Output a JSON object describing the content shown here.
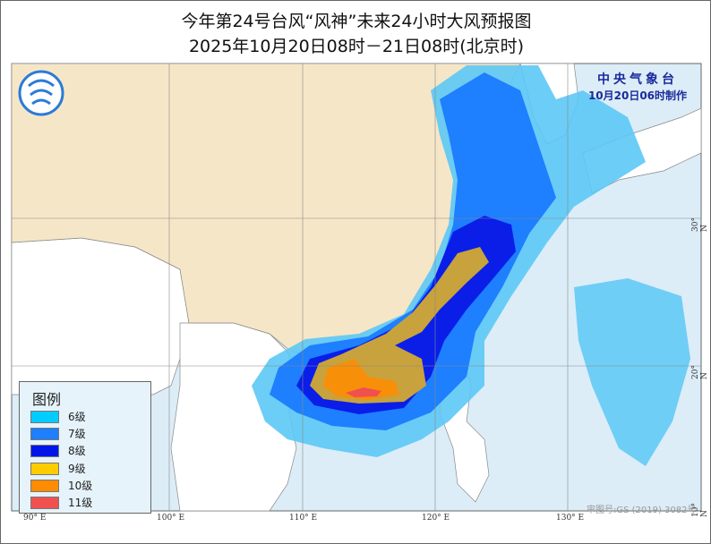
{
  "title": {
    "line1": "今年第24号台风“风神”未来24小时大风预报图",
    "line2": "2025年10月20日08时－21日08时(北京时)"
  },
  "agency": {
    "name": "中央气象台",
    "issued": "10月20日06时制作"
  },
  "legend": {
    "title": "图例",
    "items": [
      {
        "label": "6级",
        "color": "#00ccff"
      },
      {
        "label": "7级",
        "color": "#1e7fff"
      },
      {
        "label": "8级",
        "color": "#0015e8"
      },
      {
        "label": "9级",
        "color": "#ffcc00"
      },
      {
        "label": "10级",
        "color": "#ff8c00"
      },
      {
        "label": "11级",
        "color": "#f05050"
      }
    ]
  },
  "axes": {
    "lon_ticks": [
      "90° E",
      "100° E",
      "110° E",
      "120° E",
      "130° E"
    ],
    "lat_ticks": [
      "30° N",
      "20° N",
      "10° N"
    ]
  },
  "approval_number": "审图号:GS (2019) 3082号",
  "colors": {
    "china_land": "#f6e6c8",
    "sea": "#dcedf8",
    "other_land": "#ffffff",
    "map_level9": "#c8a23c"
  }
}
